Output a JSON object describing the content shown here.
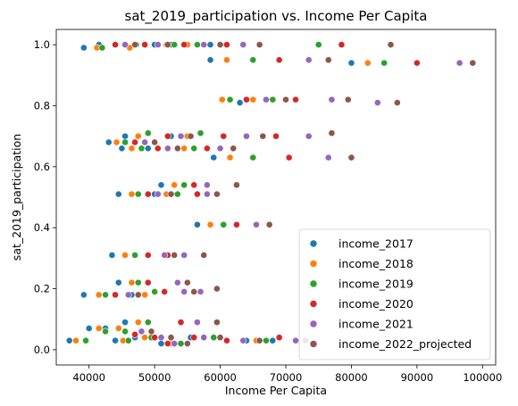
{
  "chart_data": {
    "type": "scatter",
    "title": "sat_2019_participation vs. Income Per Capita",
    "xlabel": "Income Per Capita",
    "ylabel": "sat_2019_participation",
    "xlim": [
      35000,
      102000
    ],
    "ylim": [
      -0.05,
      1.05
    ],
    "xticks": [
      40000,
      50000,
      60000,
      70000,
      80000,
      90000,
      100000
    ],
    "yticks": [
      0.0,
      0.2,
      0.4,
      0.6,
      0.8,
      1.0
    ],
    "xtick_labels": [
      "40000",
      "50000",
      "60000",
      "70000",
      "80000",
      "90000",
      "100000"
    ],
    "ytick_labels": [
      "0.0",
      "0.2",
      "0.4",
      "0.6",
      "0.8",
      "1.0"
    ],
    "grid": false,
    "legend": {
      "position": "lower-right"
    },
    "series": [
      {
        "name": "income_2017",
        "color": "#1f77b4",
        "points": [
          [
            39200,
            0.99
          ],
          [
            41500,
            1.0
          ],
          [
            45500,
            1.0
          ],
          [
            50000,
            1.0
          ],
          [
            52500,
            1.0
          ],
          [
            58500,
            1.0
          ],
          [
            58500,
            0.95
          ],
          [
            63000,
            0.81
          ],
          [
            43000,
            0.68
          ],
          [
            45000,
            0.66
          ],
          [
            45500,
            0.7
          ],
          [
            49000,
            0.66
          ],
          [
            52500,
            0.7
          ],
          [
            59000,
            0.63
          ],
          [
            44500,
            0.51
          ],
          [
            50000,
            0.51
          ],
          [
            56500,
            0.41
          ],
          [
            43500,
            0.31
          ],
          [
            44500,
            0.22
          ],
          [
            39200,
            0.18
          ],
          [
            46500,
            0.18
          ],
          [
            40000,
            0.07
          ],
          [
            42500,
            0.07
          ],
          [
            45500,
            0.09
          ],
          [
            37000,
            0.03
          ],
          [
            44000,
            0.03
          ],
          [
            47000,
            0.04
          ],
          [
            51000,
            0.02
          ],
          [
            55500,
            0.04
          ],
          [
            64000,
            0.03
          ],
          [
            68000,
            0.03
          ],
          [
            80000,
            0.94
          ],
          [
            51000,
            0.54
          ]
        ]
      },
      {
        "name": "income_2018",
        "color": "#ff7f0e",
        "points": [
          [
            41200,
            0.99
          ],
          [
            46200,
            0.99
          ],
          [
            51800,
            1.0
          ],
          [
            55000,
            1.0
          ],
          [
            61000,
            0.95
          ],
          [
            60300,
            0.82
          ],
          [
            65000,
            0.82
          ],
          [
            44200,
            0.68
          ],
          [
            46500,
            0.66
          ],
          [
            47500,
            0.7
          ],
          [
            54500,
            0.66
          ],
          [
            55000,
            0.7
          ],
          [
            61500,
            0.63
          ],
          [
            46500,
            0.51
          ],
          [
            51800,
            0.51
          ],
          [
            58500,
            0.41
          ],
          [
            45500,
            0.31
          ],
          [
            46500,
            0.22
          ],
          [
            41500,
            0.18
          ],
          [
            48500,
            0.18
          ],
          [
            41500,
            0.07
          ],
          [
            44500,
            0.07
          ],
          [
            47500,
            0.09
          ],
          [
            38000,
            0.03
          ],
          [
            45200,
            0.03
          ],
          [
            48500,
            0.04
          ],
          [
            52500,
            0.02
          ],
          [
            57500,
            0.04
          ],
          [
            65500,
            0.03
          ],
          [
            71500,
            0.03
          ],
          [
            82500,
            0.94
          ],
          [
            53000,
            0.54
          ]
        ]
      },
      {
        "name": "income_2019",
        "color": "#2ca02c",
        "points": [
          [
            42000,
            0.99
          ],
          [
            47200,
            1.0
          ],
          [
            53000,
            1.0
          ],
          [
            56500,
            1.0
          ],
          [
            65000,
            0.95
          ],
          [
            61500,
            0.82
          ],
          [
            68000,
            0.82
          ],
          [
            45500,
            0.68
          ],
          [
            48000,
            0.66
          ],
          [
            49000,
            0.71
          ],
          [
            56000,
            0.66
          ],
          [
            57000,
            0.71
          ],
          [
            65000,
            0.63
          ],
          [
            47500,
            0.51
          ],
          [
            53500,
            0.51
          ],
          [
            60500,
            0.41
          ],
          [
            47000,
            0.31
          ],
          [
            47500,
            0.22
          ],
          [
            42500,
            0.18
          ],
          [
            50000,
            0.19
          ],
          [
            42500,
            0.06
          ],
          [
            45500,
            0.06
          ],
          [
            49000,
            0.09
          ],
          [
            39500,
            0.03
          ],
          [
            46000,
            0.03
          ],
          [
            49500,
            0.04
          ],
          [
            54000,
            0.02
          ],
          [
            59000,
            0.04
          ],
          [
            67000,
            0.03
          ],
          [
            75000,
            1.0
          ],
          [
            85000,
            0.94
          ],
          [
            54500,
            0.54
          ]
        ]
      },
      {
        "name": "income_2020",
        "color": "#d62728",
        "points": [
          [
            44000,
            1.0
          ],
          [
            48500,
            1.0
          ],
          [
            54500,
            1.0
          ],
          [
            61000,
            1.0
          ],
          [
            69000,
            0.95
          ],
          [
            64000,
            0.82
          ],
          [
            71500,
            0.82
          ],
          [
            47000,
            0.68
          ],
          [
            50500,
            0.66
          ],
          [
            52000,
            0.7
          ],
          [
            58000,
            0.66
          ],
          [
            60500,
            0.7
          ],
          [
            68500,
            0.7
          ],
          [
            70500,
            0.63
          ],
          [
            49000,
            0.51
          ],
          [
            56500,
            0.51
          ],
          [
            62500,
            0.41
          ],
          [
            49000,
            0.31
          ],
          [
            52000,
            0.31
          ],
          [
            49000,
            0.22
          ],
          [
            44000,
            0.18
          ],
          [
            51500,
            0.19
          ],
          [
            54000,
            0.09
          ],
          [
            47000,
            0.05
          ],
          [
            50000,
            0.04
          ],
          [
            52000,
            0.02
          ],
          [
            56000,
            0.04
          ],
          [
            61000,
            0.03
          ],
          [
            69000,
            0.04
          ],
          [
            78500,
            1.0
          ],
          [
            90000,
            0.94
          ],
          [
            56000,
            0.54
          ]
        ]
      },
      {
        "name": "income_2021",
        "color": "#9467bd",
        "points": [
          [
            45500,
            1.0
          ],
          [
            50500,
            1.0
          ],
          [
            57500,
            1.0
          ],
          [
            63500,
            1.0
          ],
          [
            73500,
            0.95
          ],
          [
            67000,
            0.82
          ],
          [
            77000,
            0.82
          ],
          [
            48500,
            0.68
          ],
          [
            52000,
            0.66
          ],
          [
            54000,
            0.7
          ],
          [
            60000,
            0.66
          ],
          [
            64000,
            0.7
          ],
          [
            73500,
            0.7
          ],
          [
            76500,
            0.63
          ],
          [
            50500,
            0.51
          ],
          [
            58000,
            0.51
          ],
          [
            65500,
            0.41
          ],
          [
            51500,
            0.31
          ],
          [
            54500,
            0.31
          ],
          [
            53500,
            0.22
          ],
          [
            46000,
            0.18
          ],
          [
            54500,
            0.19
          ],
          [
            57000,
            0.19
          ],
          [
            56500,
            0.09
          ],
          [
            48000,
            0.06
          ],
          [
            51000,
            0.04
          ],
          [
            53000,
            0.02
          ],
          [
            57500,
            0.04
          ],
          [
            63500,
            0.03
          ],
          [
            71500,
            0.03
          ],
          [
            84000,
            0.81
          ],
          [
            96500,
            0.94
          ],
          [
            58000,
            0.54
          ]
        ]
      },
      {
        "name": "income_2022_projected",
        "color": "#8c564b",
        "points": [
          [
            47000,
            1.0
          ],
          [
            52000,
            1.0
          ],
          [
            60000,
            1.0
          ],
          [
            66000,
            1.0
          ],
          [
            76500,
            0.95
          ],
          [
            70000,
            0.82
          ],
          [
            79500,
            0.82
          ],
          [
            50000,
            0.68
          ],
          [
            53500,
            0.66
          ],
          [
            55500,
            0.7
          ],
          [
            62000,
            0.66
          ],
          [
            66500,
            0.7
          ],
          [
            77000,
            0.71
          ],
          [
            80000,
            0.63
          ],
          [
            52500,
            0.51
          ],
          [
            59500,
            0.51
          ],
          [
            67500,
            0.41
          ],
          [
            53000,
            0.31
          ],
          [
            57500,
            0.31
          ],
          [
            55000,
            0.22
          ],
          [
            47500,
            0.18
          ],
          [
            56000,
            0.19
          ],
          [
            59500,
            0.2
          ],
          [
            59500,
            0.09
          ],
          [
            49500,
            0.06
          ],
          [
            52500,
            0.04
          ],
          [
            55000,
            0.02
          ],
          [
            60000,
            0.04
          ],
          [
            66000,
            0.03
          ],
          [
            73000,
            0.03
          ],
          [
            86000,
            1.0
          ],
          [
            87000,
            0.81
          ],
          [
            98500,
            0.94
          ],
          [
            62500,
            0.54
          ]
        ]
      }
    ]
  }
}
